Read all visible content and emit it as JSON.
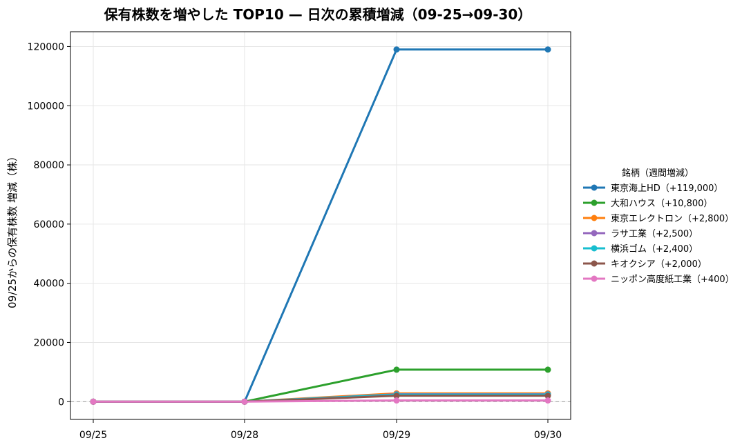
{
  "chart_data": {
    "type": "line",
    "title": "保有株数を増やした TOP10 — 日次の累積増減（09-25→09-30）",
    "xlabel": "",
    "ylabel": "09/25からの保有株数 増減（株）",
    "categories": [
      "09/25",
      "09/28",
      "09/29",
      "09/30"
    ],
    "ylim": [
      -6000,
      125000
    ],
    "yticks": [
      0,
      20000,
      40000,
      60000,
      80000,
      100000,
      120000
    ],
    "grid": true,
    "baseline": 0,
    "legend": {
      "title": "銘柄（週間増減）",
      "placement": "right"
    },
    "series": [
      {
        "name": "東京海上HD（+119,000）",
        "color": "#1f77b4",
        "values": [
          0,
          0,
          119000,
          119000
        ]
      },
      {
        "name": "大和ハウス（+10,800）",
        "color": "#2ca02c",
        "values": [
          0,
          0,
          10800,
          10800
        ]
      },
      {
        "name": "東京エレクトロン（+2,800）",
        "color": "#ff7f0e",
        "values": [
          0,
          0,
          2800,
          2800
        ]
      },
      {
        "name": "ラサ工業（+2,500）",
        "color": "#9467bd",
        "values": [
          0,
          0,
          2500,
          2500
        ]
      },
      {
        "name": "横浜ゴム（+2,400）",
        "color": "#17becf",
        "values": [
          0,
          0,
          2400,
          2400
        ]
      },
      {
        "name": "キオクシア（+2,000）",
        "color": "#8c564b",
        "values": [
          0,
          0,
          2000,
          2000
        ]
      },
      {
        "name": "ニッポン高度紙工業（+400）",
        "color": "#e377c2",
        "values": [
          0,
          0,
          400,
          400
        ]
      }
    ]
  }
}
